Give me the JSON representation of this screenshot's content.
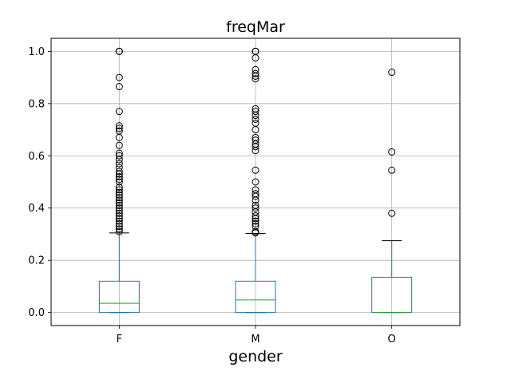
{
  "chart_data": {
    "type": "box",
    "title": "freqMar",
    "xlabel": "gender",
    "ylabel": "",
    "ylim": [
      -0.05,
      1.05
    ],
    "yticks": [
      "0.0",
      "0.2",
      "0.4",
      "0.6",
      "0.8",
      "1.0"
    ],
    "grid": true,
    "categories": [
      "F",
      "M",
      "O"
    ],
    "colors": {
      "box": "#1f77b4",
      "median": "#2ca02c",
      "whisker": "#1f77b4",
      "cap": "#000000",
      "flier": "#000000",
      "grid": "#b0b0b0"
    },
    "boxes": [
      {
        "category": "F",
        "whislo": 0.0,
        "q1": 0.0,
        "median": 0.035,
        "q3": 0.12,
        "whishi": 0.305,
        "fliers": [
          1.0,
          1.0,
          1.0,
          0.9,
          0.865,
          0.77,
          0.715,
          0.705,
          0.695,
          0.67,
          0.64,
          0.61,
          0.6,
          0.585,
          0.57,
          0.555,
          0.54,
          0.53,
          0.52,
          0.51,
          0.5,
          0.48,
          0.47,
          0.46,
          0.45,
          0.44,
          0.43,
          0.42,
          0.41,
          0.4,
          0.39,
          0.38,
          0.37,
          0.36,
          0.35,
          0.34,
          0.33,
          0.32,
          0.31
        ]
      },
      {
        "category": "M",
        "whislo": 0.0,
        "q1": 0.0,
        "median": 0.048,
        "q3": 0.12,
        "whishi": 0.303,
        "fliers": [
          1.0,
          1.0,
          1.0,
          0.975,
          0.93,
          0.915,
          0.905,
          0.895,
          0.78,
          0.77,
          0.755,
          0.74,
          0.725,
          0.7,
          0.67,
          0.66,
          0.645,
          0.635,
          0.62,
          0.545,
          0.5,
          0.47,
          0.455,
          0.445,
          0.43,
          0.41,
          0.4,
          0.385,
          0.37,
          0.36,
          0.35,
          0.34,
          0.33,
          0.31,
          0.305
        ]
      },
      {
        "category": "O",
        "whislo": 0.0,
        "q1": 0.0,
        "median": 0.0,
        "q3": 0.135,
        "whishi": 0.275,
        "fliers": [
          0.92,
          0.615,
          0.545,
          0.38
        ]
      }
    ]
  }
}
